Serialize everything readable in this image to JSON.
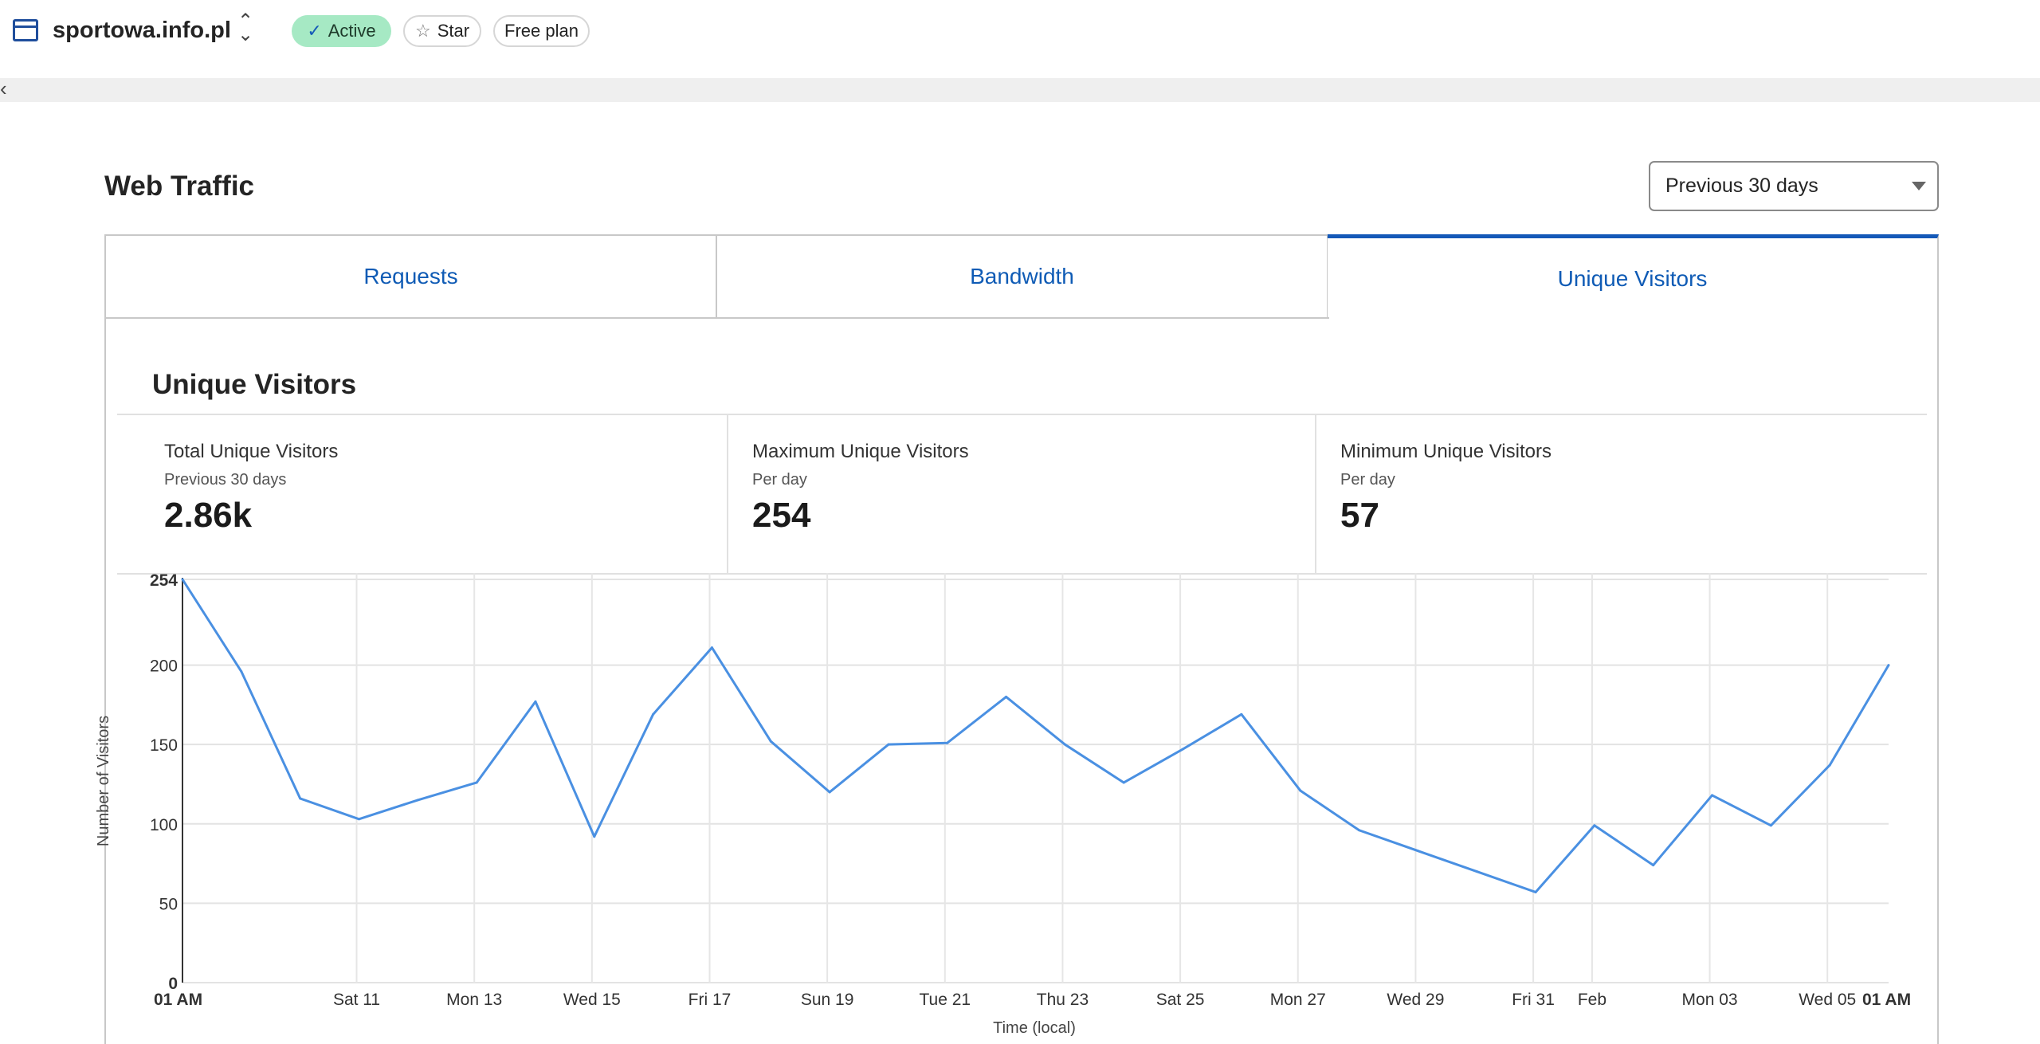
{
  "header": {
    "site_name": "sportowa.info.pl",
    "status_badge": "Active",
    "star_label": "Star",
    "plan_badge": "Free plan"
  },
  "page": {
    "title": "Web Traffic",
    "range_select": "Previous 30 days"
  },
  "tabs": [
    {
      "label": "Requests",
      "active": false
    },
    {
      "label": "Bandwidth",
      "active": false
    },
    {
      "label": "Unique Visitors",
      "active": true
    }
  ],
  "section": {
    "title": "Unique Visitors",
    "stats": [
      {
        "label": "Total Unique Visitors",
        "sub": "Previous 30 days",
        "value": "2.86k"
      },
      {
        "label": "Maximum Unique Visitors",
        "sub": "Per day",
        "value": "254"
      },
      {
        "label": "Minimum Unique Visitors",
        "sub": "Per day",
        "value": "57"
      }
    ]
  },
  "colors": {
    "accent": "#1459b8",
    "line": "#4a90e2",
    "active_badge": "#a6e9c4"
  },
  "chart_data": {
    "type": "line",
    "title": "",
    "xlabel": "Time (local)",
    "ylabel": "Number of Visitors",
    "ylim": [
      0,
      254
    ],
    "xlim": [
      0,
      29
    ],
    "grid": true,
    "y_ticks": [
      0,
      50,
      100,
      150,
      200,
      254
    ],
    "x_ticks": [
      {
        "x": 0,
        "label": "01 AM",
        "bold": true
      },
      {
        "x": 2.96,
        "label": "Sat 11"
      },
      {
        "x": 4.96,
        "label": "Mon 13"
      },
      {
        "x": 6.96,
        "label": "Wed 15"
      },
      {
        "x": 8.96,
        "label": "Fri 17"
      },
      {
        "x": 10.96,
        "label": "Sun 19"
      },
      {
        "x": 12.96,
        "label": "Tue 21"
      },
      {
        "x": 14.96,
        "label": "Thu 23"
      },
      {
        "x": 16.96,
        "label": "Sat 25"
      },
      {
        "x": 18.96,
        "label": "Mon 27"
      },
      {
        "x": 20.96,
        "label": "Wed 29"
      },
      {
        "x": 22.96,
        "label": "Fri 31"
      },
      {
        "x": 23.96,
        "label": "Feb"
      },
      {
        "x": 25.96,
        "label": "Mon 03"
      },
      {
        "x": 27.96,
        "label": "Wed 05"
      },
      {
        "x": 29,
        "label": "01 AM",
        "bold": true
      }
    ],
    "series": [
      {
        "name": "Unique Visitors",
        "values": [
          254,
          196,
          116,
          103,
          115,
          126,
          177,
          92,
          169,
          211,
          152,
          120,
          150,
          151,
          180,
          150,
          126,
          147,
          169,
          121,
          96,
          83,
          70,
          57,
          99,
          74,
          118,
          99,
          137,
          200
        ]
      }
    ]
  }
}
